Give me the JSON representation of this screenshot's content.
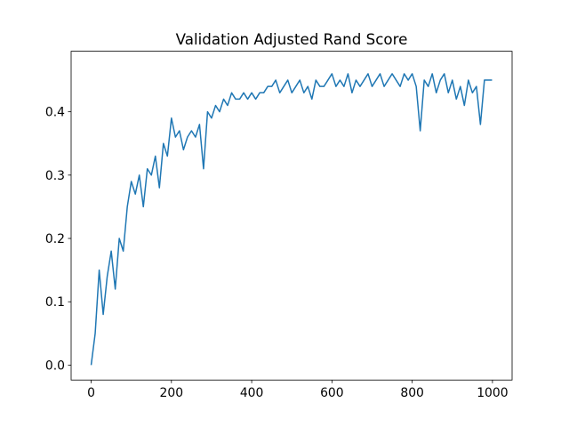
{
  "chart_data": {
    "type": "line",
    "title": "Validation Adjusted Rand Score",
    "x": [
      0,
      10,
      20,
      30,
      40,
      50,
      60,
      70,
      80,
      90,
      100,
      110,
      120,
      130,
      140,
      150,
      160,
      170,
      180,
      190,
      200,
      210,
      220,
      230,
      240,
      250,
      260,
      270,
      280,
      290,
      300,
      310,
      320,
      330,
      340,
      350,
      360,
      370,
      380,
      390,
      400,
      410,
      420,
      430,
      440,
      450,
      460,
      470,
      480,
      490,
      500,
      510,
      520,
      530,
      540,
      550,
      560,
      570,
      580,
      590,
      600,
      610,
      620,
      630,
      640,
      650,
      660,
      670,
      680,
      690,
      700,
      710,
      720,
      730,
      740,
      750,
      760,
      770,
      780,
      790,
      800,
      810,
      820,
      830,
      840,
      850,
      860,
      870,
      880,
      890,
      900,
      910,
      920,
      930,
      940,
      950,
      960,
      970,
      980,
      990,
      999
    ],
    "values": [
      0.0,
      0.05,
      0.15,
      0.08,
      0.14,
      0.18,
      0.12,
      0.2,
      0.18,
      0.25,
      0.29,
      0.27,
      0.3,
      0.25,
      0.31,
      0.3,
      0.33,
      0.28,
      0.35,
      0.33,
      0.39,
      0.36,
      0.37,
      0.34,
      0.36,
      0.37,
      0.36,
      0.38,
      0.31,
      0.4,
      0.39,
      0.41,
      0.4,
      0.42,
      0.41,
      0.43,
      0.42,
      0.42,
      0.43,
      0.42,
      0.43,
      0.42,
      0.43,
      0.43,
      0.44,
      0.44,
      0.45,
      0.43,
      0.44,
      0.45,
      0.43,
      0.44,
      0.45,
      0.43,
      0.44,
      0.42,
      0.45,
      0.44,
      0.44,
      0.45,
      0.46,
      0.44,
      0.45,
      0.44,
      0.46,
      0.43,
      0.45,
      0.44,
      0.45,
      0.46,
      0.44,
      0.45,
      0.46,
      0.44,
      0.45,
      0.46,
      0.45,
      0.44,
      0.46,
      0.45,
      0.46,
      0.44,
      0.37,
      0.45,
      0.44,
      0.46,
      0.43,
      0.45,
      0.46,
      0.43,
      0.45,
      0.42,
      0.44,
      0.41,
      0.45,
      0.43,
      0.44,
      0.38,
      0.45,
      0.45,
      0.45
    ],
    "color": "#1f77b4",
    "xlim": [
      -49.95,
      1048.95
    ],
    "xticks": [
      0,
      200,
      400,
      600,
      800,
      1000
    ],
    "ylim": [
      -0.0236,
      0.4956
    ],
    "yticks": [
      {
        "value": 0,
        "label": "0.0"
      },
      0.1,
      0.2,
      0.3,
      0.4
    ]
  }
}
